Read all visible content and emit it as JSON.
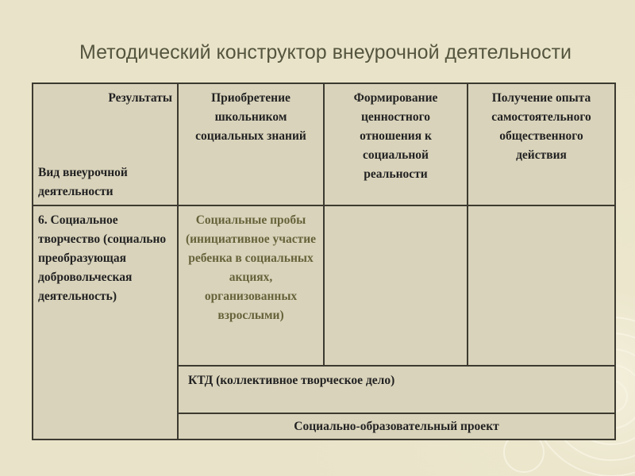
{
  "title": "Методический конструктор внеурочной деятельности",
  "table": {
    "corner_top": "Результаты",
    "corner_bottom": "Вид внеурочной деятельности",
    "headers": [
      "Приобретение школьником социальных знаний",
      "Формирование ценностного отношения к социальной реальности",
      "Получение опыта самостоятельного общественного действия"
    ],
    "row_label": "6. Социальное творчество (социально преобразующая добровольческая деятельность)",
    "cell_social_trials": "Социальные пробы (инициативное участие ребенка в социальных акциях, организованных взрослыми)",
    "ktd": "КТД (коллективное творческое дело)",
    "project": "Социально-образовательный проект"
  }
}
